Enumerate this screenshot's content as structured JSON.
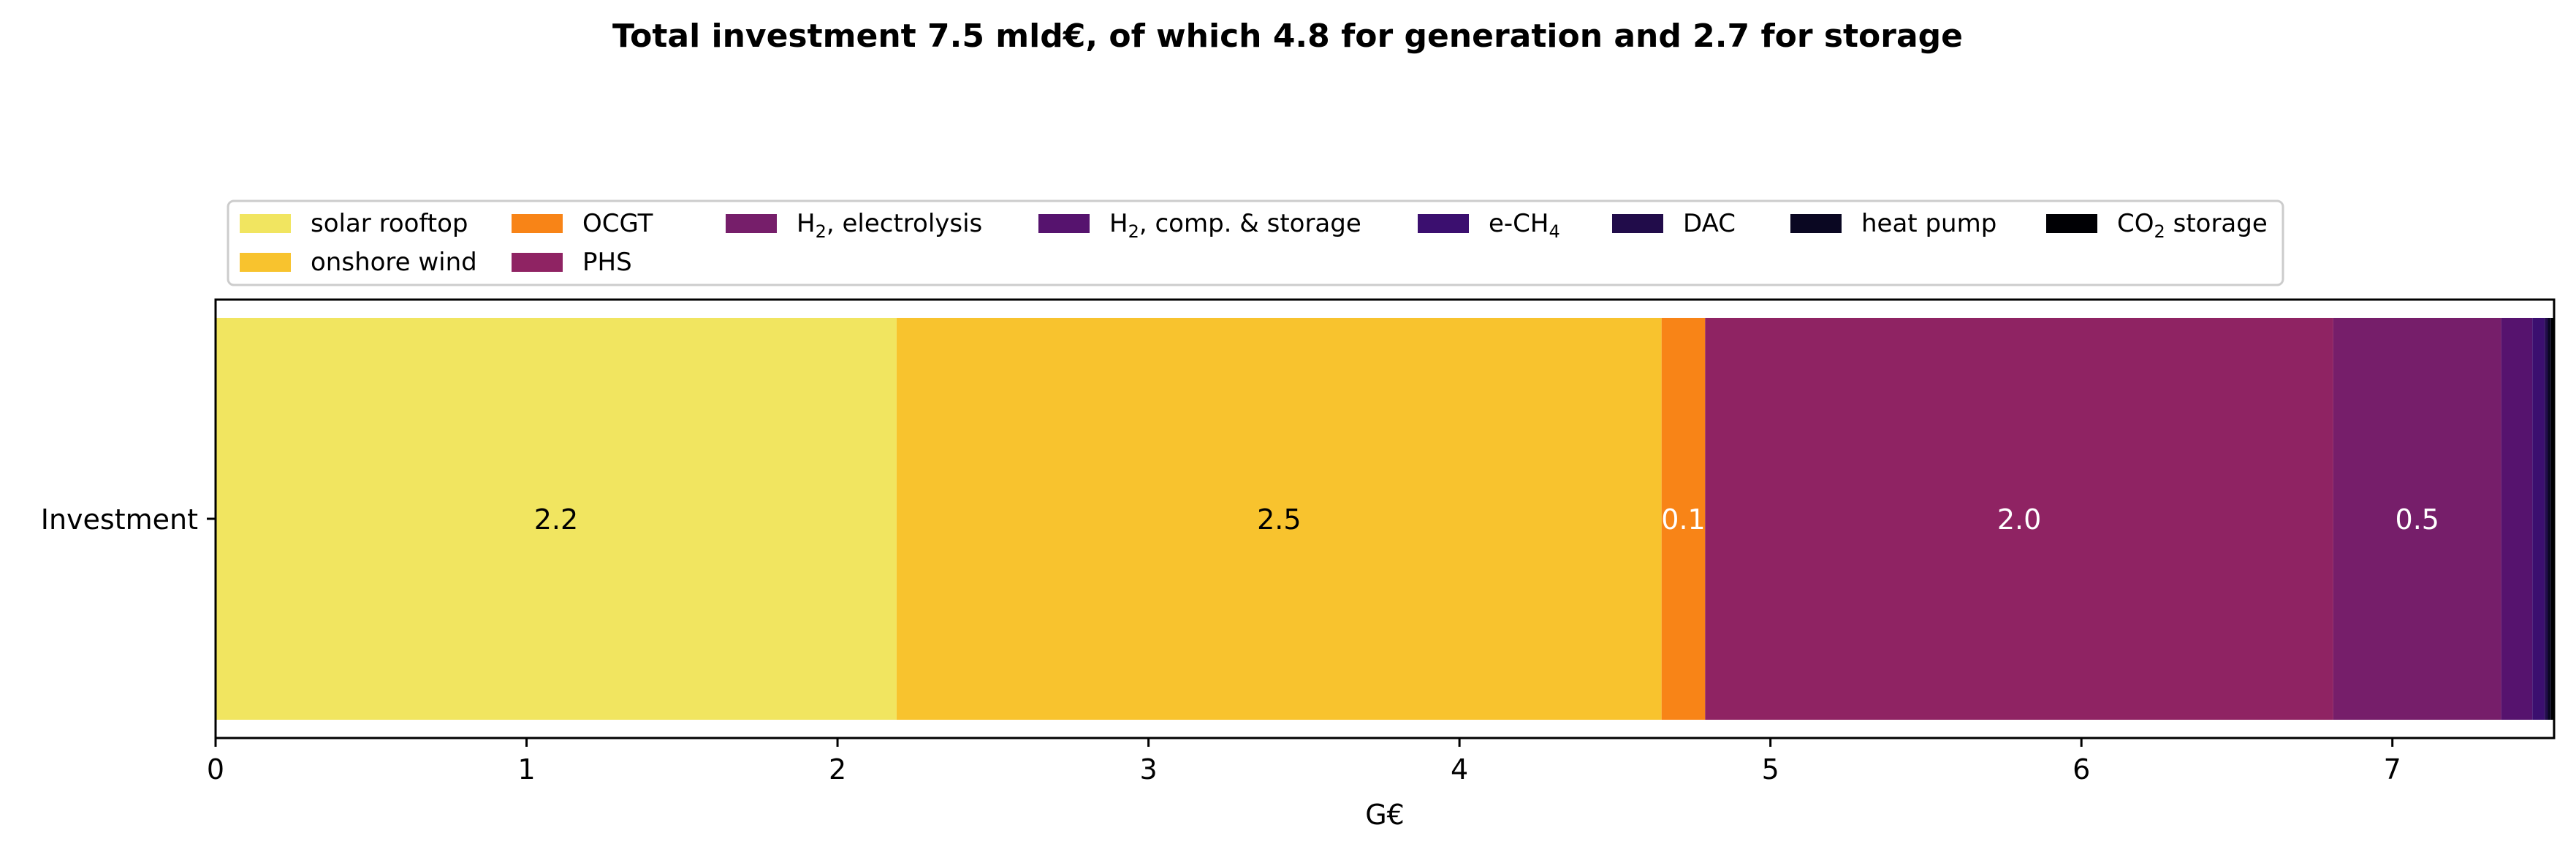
{
  "chart_data": {
    "type": "bar",
    "orientation": "horizontal",
    "stacked": true,
    "title": "Total investment 7.5 mld€, of which 4.8 for generation and 2.7 for storage",
    "xlabel": "G€",
    "ylabel": "",
    "categories": [
      "Investment"
    ],
    "xlim": [
      0,
      7.52
    ],
    "xticks": [
      "0",
      "1",
      "2",
      "3",
      "4",
      "5",
      "6",
      "7"
    ],
    "grid": false,
    "legend_position": "top-left",
    "legend_columns": 8,
    "series": [
      {
        "name": "solar rooftop",
        "name_sub": "",
        "name_suffix": "",
        "value": 2.19,
        "color": "#f1e560",
        "label": "2.2",
        "label_color": "#000000"
      },
      {
        "name": "onshore wind",
        "name_sub": "",
        "name_suffix": "",
        "value": 2.46,
        "color": "#f8c32e",
        "label": "2.5",
        "label_color": "#000000"
      },
      {
        "name": "OCGT",
        "name_sub": "",
        "name_suffix": "",
        "value": 0.14,
        "color": "#f88417",
        "label": "0.1",
        "label_color": "#ffffff"
      },
      {
        "name": "PHS",
        "name_sub": "",
        "name_suffix": "",
        "value": 2.02,
        "color": "#8f2363",
        "label": "2.0",
        "label_color": "#ffffff"
      },
      {
        "name": "H",
        "name_sub": "2",
        "name_suffix": ", electrolysis",
        "value": 0.54,
        "color": "#761e6a",
        "label": "0.5",
        "label_color": "#ffffff"
      },
      {
        "name": "H",
        "name_sub": "2",
        "name_suffix": ", comp. & storage",
        "value": 0.1,
        "color": "#56136e",
        "label": "",
        "label_color": "#ffffff"
      },
      {
        "name": "e-CH",
        "name_sub": "4",
        "name_suffix": "",
        "value": 0.04,
        "color": "#3b0f6f",
        "label": "",
        "label_color": "#ffffff"
      },
      {
        "name": "DAC",
        "name_sub": "",
        "name_suffix": "",
        "value": 0.01,
        "color": "#210c4a",
        "label": "",
        "label_color": "#ffffff"
      },
      {
        "name": "heat pump",
        "name_sub": "",
        "name_suffix": "",
        "value": 0.01,
        "color": "#0a0722",
        "label": "",
        "label_color": "#ffffff"
      },
      {
        "name": "CO",
        "name_sub": "2",
        "name_suffix": " storage",
        "value": 0.01,
        "color": "#000004",
        "label": "",
        "label_color": "#ffffff"
      }
    ]
  }
}
